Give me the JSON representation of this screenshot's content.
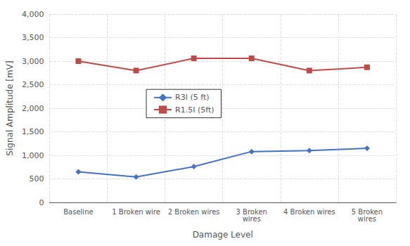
{
  "chart_data": {
    "type": "line",
    "categories": [
      "Baseline",
      "1 Broken wire",
      "2 Broken wires",
      "3 Broken\nwires",
      "4 Broken wires",
      "5 Broken\nwires"
    ],
    "series": [
      {
        "name": "R3I (5 ft)",
        "color": "#4472C4",
        "marker": "diamond",
        "values": [
          650,
          540,
          760,
          1080,
          1100,
          1150
        ]
      },
      {
        "name": "R1.5I (5ft)",
        "color": "#BE4B48",
        "marker": "square",
        "values": [
          3000,
          2800,
          3060,
          3060,
          2800,
          2870
        ]
      }
    ],
    "xlabel": "Damage Level",
    "ylabel": "Signal Amplitude [mV]",
    "ylim": [
      0,
      4000
    ],
    "yticks": [
      0,
      500,
      1000,
      1500,
      2000,
      2500,
      3000,
      3500,
      4000
    ],
    "grid": true,
    "legend": "center left"
  }
}
